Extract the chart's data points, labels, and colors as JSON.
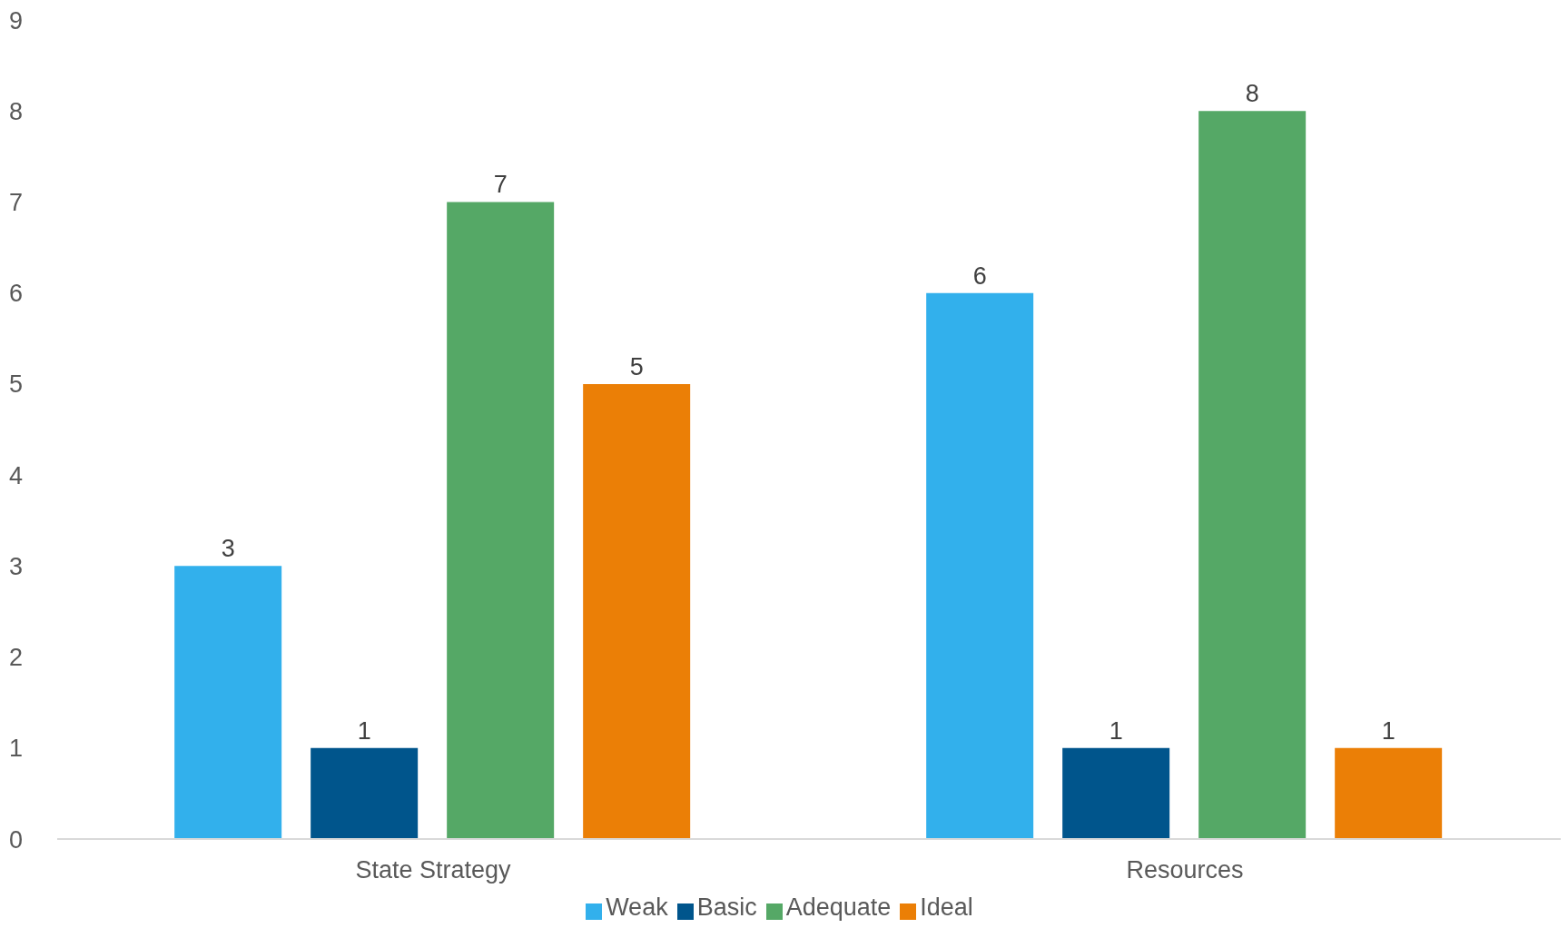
{
  "chart_data": {
    "type": "bar",
    "categories": [
      "State Strategy",
      "Resources"
    ],
    "series": [
      {
        "name": "Weak",
        "color": "#32b0ec",
        "values": [
          3,
          6
        ]
      },
      {
        "name": "Basic",
        "color": "#00558c",
        "values": [
          1,
          1
        ]
      },
      {
        "name": "Adequate",
        "color": "#55a866",
        "values": [
          7,
          8
        ]
      },
      {
        "name": "Ideal",
        "color": "#eb7f06",
        "values": [
          5,
          1
        ]
      }
    ],
    "ylim": [
      0,
      9
    ],
    "yticks": [
      0,
      1,
      2,
      3,
      4,
      5,
      6,
      7,
      8,
      9
    ],
    "grid": false,
    "legend": "bottom",
    "data_labels": true
  }
}
